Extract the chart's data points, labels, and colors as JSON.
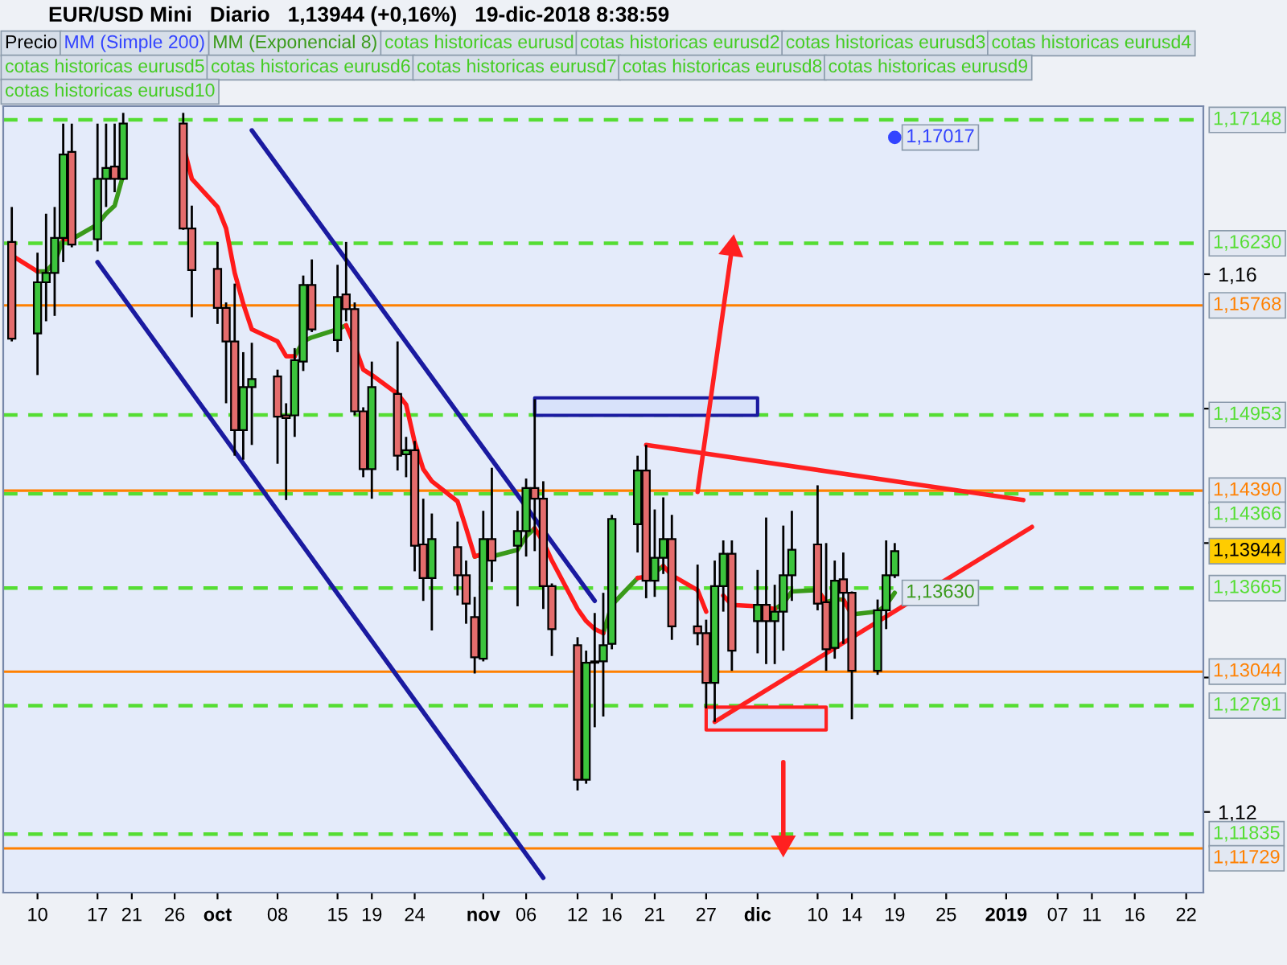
{
  "chart_data": {
    "type": "candlestick",
    "title": "EUR/USD Mini   Diario   1,13944 (+0,16%)   19-dic-2018 8:38:59",
    "xlim": [
      "2018-09-06",
      "2019-01-24"
    ],
    "xticks": [
      {
        "value": "2018-09-10",
        "label": "10"
      },
      {
        "value": "2018-09-17",
        "label": "17"
      },
      {
        "value": "2018-09-21",
        "label": "21"
      },
      {
        "value": "2018-09-26",
        "label": "26"
      },
      {
        "value": "2018-10-01",
        "label": "oct"
      },
      {
        "value": "2018-10-08",
        "label": "08"
      },
      {
        "value": "2018-10-15",
        "label": "15"
      },
      {
        "value": "2018-10-19",
        "label": "19"
      },
      {
        "value": "2018-10-24",
        "label": "24"
      },
      {
        "value": "2018-11-01",
        "label": "nov"
      },
      {
        "value": "2018-11-06",
        "label": "06"
      },
      {
        "value": "2018-11-12",
        "label": "12"
      },
      {
        "value": "2018-11-16",
        "label": "16"
      },
      {
        "value": "2018-11-21",
        "label": "21"
      },
      {
        "value": "2018-11-27",
        "label": "27"
      },
      {
        "value": "2018-12-03",
        "label": "dic"
      },
      {
        "value": "2018-12-10",
        "label": "10"
      },
      {
        "value": "2018-12-14",
        "label": "14"
      },
      {
        "value": "2018-12-19",
        "label": "19"
      },
      {
        "value": "2018-12-25",
        "label": "25"
      },
      {
        "value": "2019-01-01",
        "label": "2019"
      },
      {
        "value": "2019-01-07",
        "label": "07"
      },
      {
        "value": "2019-01-11",
        "label": "11"
      },
      {
        "value": "2019-01-16",
        "label": "16"
      },
      {
        "value": "2019-01-22",
        "label": "22"
      }
    ],
    "ylim": [
      1.114,
      1.1725
    ],
    "yticks": [
      {
        "value": 1.12,
        "label": "1,12"
      },
      {
        "value": 1.13,
        "label": null
      },
      {
        "value": 1.14,
        "label": null
      },
      {
        "value": 1.15,
        "label": null
      },
      {
        "value": 1.16,
        "label": "1,16"
      }
    ],
    "legend": "top left",
    "annotations": [
      "cotas historicas eurusd",
      "cotas historicas eurusd2",
      "cotas historicas eurusd3",
      "cotas historicas eurusd4",
      "cotas historicas eurusd5",
      "cotas historicas eurusd6",
      "cotas historicas eurusd7",
      "cotas historicas eurusd8",
      "cotas historicas eurusd9",
      "cotas historicas eurusd10"
    ],
    "ref_lines": [
      {
        "axis": "y",
        "value": 1.17148,
        "label": "1,17148",
        "color": "#55dd33",
        "line_style": "dashed"
      },
      {
        "axis": "y",
        "value": 1.1623,
        "label": "1,16230",
        "color": "#55dd33",
        "line_style": "dashed"
      },
      {
        "axis": "y",
        "value": 1.14953,
        "label": "1,14953",
        "color": "#55dd33",
        "line_style": "dashed"
      },
      {
        "axis": "y",
        "value": 1.14366,
        "label": "1,14366",
        "color": "#55dd33",
        "line_style": "dashed"
      },
      {
        "axis": "y",
        "value": 1.13665,
        "label": "1,13665",
        "color": "#55dd33",
        "line_style": "dashed"
      },
      {
        "axis": "y",
        "value": 1.12791,
        "label": "1,12791",
        "color": "#55dd33",
        "line_style": "dashed"
      },
      {
        "axis": "y",
        "value": 1.11835,
        "label": "1,11835",
        "color": "#55dd33",
        "line_style": "dashed"
      },
      {
        "axis": "y",
        "value": 1.15768,
        "label": "1,15768",
        "color": "#ff8000",
        "line_style": "solid"
      },
      {
        "axis": "y",
        "value": 1.1439,
        "label": "1,14390",
        "color": "#ff8000",
        "line_style": "solid"
      },
      {
        "axis": "y",
        "value": 1.13044,
        "label": "1,13044",
        "color": "#ff8000",
        "line_style": "solid"
      },
      {
        "axis": "y",
        "value": 1.11729,
        "label": "1,11729",
        "color": "#ff8000",
        "line_style": "solid"
      }
    ],
    "series": [
      {
        "name": "Precio",
        "x": [
          "2018-09-07",
          "2018-09-10",
          "2018-09-11",
          "2018-09-12",
          "2018-09-13",
          "2018-09-14",
          "2018-09-17",
          "2018-09-18",
          "2018-09-19",
          "2018-09-20",
          "2018-09-27",
          "2018-09-28",
          "2018-10-01",
          "2018-10-02",
          "2018-10-03",
          "2018-10-04",
          "2018-10-05",
          "2018-10-08",
          "2018-10-09",
          "2018-10-10",
          "2018-10-11",
          "2018-10-12",
          "2018-10-15",
          "2018-10-16",
          "2018-10-17",
          "2018-10-18",
          "2018-10-19",
          "2018-10-22",
          "2018-10-23",
          "2018-10-24",
          "2018-10-25",
          "2018-10-26",
          "2018-10-29",
          "2018-10-30",
          "2018-10-31",
          "2018-11-01",
          "2018-11-02",
          "2018-11-05",
          "2018-11-06",
          "2018-11-07",
          "2018-11-08",
          "2018-11-09",
          "2018-11-12",
          "2018-11-13",
          "2018-11-14",
          "2018-11-15",
          "2018-11-16",
          "2018-11-19",
          "2018-11-20",
          "2018-11-21",
          "2018-11-22",
          "2018-11-23",
          "2018-11-26",
          "2018-11-27",
          "2018-11-28",
          "2018-11-29",
          "2018-11-30",
          "2018-12-03",
          "2018-12-04",
          "2018-12-05",
          "2018-12-06",
          "2018-12-07",
          "2018-12-10",
          "2018-12-11",
          "2018-12-12",
          "2018-12-13",
          "2018-12-14",
          "2018-12-17",
          "2018-12-18",
          "2018-12-19"
        ],
        "ohlc": [
          [
            1.1624,
            1.165,
            1.155,
            1.1552
          ],
          [
            1.1556,
            1.1616,
            1.1525,
            1.1594
          ],
          [
            1.1594,
            1.1645,
            1.1565,
            1.1601
          ],
          [
            1.1601,
            1.165,
            1.1569,
            1.1627
          ],
          [
            1.1627,
            1.1712,
            1.1609,
            1.1689
          ],
          [
            1.1691,
            1.1712,
            1.162,
            1.1622
          ],
          [
            1.1626,
            1.1712,
            1.1617,
            1.1671
          ],
          [
            1.1671,
            1.1712,
            1.165,
            1.1679
          ],
          [
            1.168,
            1.1712,
            1.1661,
            1.1671
          ],
          [
            1.1671,
            1.172,
            1.167,
            1.1712
          ],
          [
            1.1712,
            1.172,
            1.1633,
            1.1634
          ],
          [
            1.1634,
            1.1651,
            1.1568,
            1.1603
          ],
          [
            1.1604,
            1.1624,
            1.1563,
            1.1575
          ],
          [
            1.1575,
            1.1579,
            1.1504,
            1.155
          ],
          [
            1.155,
            1.1593,
            1.1465,
            1.1484
          ],
          [
            1.1484,
            1.1542,
            1.1462,
            1.1516
          ],
          [
            1.1516,
            1.1549,
            1.1473,
            1.1522
          ],
          [
            1.1524,
            1.1529,
            1.1459,
            1.1494
          ],
          [
            1.1495,
            1.1504,
            1.1432,
            1.1493
          ],
          [
            1.1495,
            1.1545,
            1.1479,
            1.1536
          ],
          [
            1.1535,
            1.1599,
            1.1528,
            1.1592
          ],
          [
            1.1592,
            1.1611,
            1.1557,
            1.1559
          ],
          [
            1.1551,
            1.1607,
            1.1542,
            1.1583
          ],
          [
            1.1585,
            1.1624,
            1.1565,
            1.1574
          ],
          [
            1.1574,
            1.1579,
            1.1495,
            1.1498
          ],
          [
            1.1498,
            1.1501,
            1.1449,
            1.1455
          ],
          [
            1.1455,
            1.1535,
            1.1433,
            1.1516
          ],
          [
            1.1511,
            1.155,
            1.1454,
            1.1465
          ],
          [
            1.1466,
            1.1479,
            1.1449,
            1.1469
          ],
          [
            1.1469,
            1.1476,
            1.1379,
            1.1398
          ],
          [
            1.1399,
            1.1433,
            1.1357,
            1.1374
          ],
          [
            1.1374,
            1.1422,
            1.1335,
            1.1403
          ],
          [
            1.1397,
            1.1416,
            1.1361,
            1.1376
          ],
          [
            1.1376,
            1.1387,
            1.134,
            1.1355
          ],
          [
            1.1345,
            1.136,
            1.1303,
            1.1315
          ],
          [
            1.1314,
            1.1424,
            1.1312,
            1.1403
          ],
          [
            1.1403,
            1.1456,
            1.1371,
            1.1387
          ],
          [
            1.1398,
            1.1424,
            1.1353,
            1.1409
          ],
          [
            1.1409,
            1.1448,
            1.139,
            1.1441
          ],
          [
            1.1441,
            1.1507,
            1.1394,
            1.1433
          ],
          [
            1.1433,
            1.1446,
            1.1351,
            1.1368
          ],
          [
            1.1368,
            1.137,
            1.1316,
            1.1336
          ],
          [
            1.1324,
            1.133,
            1.1216,
            1.1224
          ],
          [
            1.1224,
            1.132,
            1.1221,
            1.1311
          ],
          [
            1.1312,
            1.1348,
            1.1263,
            1.1311
          ],
          [
            1.1312,
            1.1363,
            1.1271,
            1.1324
          ],
          [
            1.1325,
            1.1421,
            1.1321,
            1.1418
          ],
          [
            1.1414,
            1.1465,
            1.1393,
            1.1454
          ],
          [
            1.1454,
            1.1473,
            1.1359,
            1.1372
          ],
          [
            1.1372,
            1.1425,
            1.136,
            1.1389
          ],
          [
            1.1389,
            1.1434,
            1.1377,
            1.1403
          ],
          [
            1.1403,
            1.1421,
            1.1328,
            1.1338
          ],
          [
            1.1338,
            1.1384,
            1.1324,
            1.1333
          ],
          [
            1.1333,
            1.1343,
            1.1277,
            1.1296
          ],
          [
            1.1296,
            1.1387,
            1.1267,
            1.1368
          ],
          [
            1.1368,
            1.1402,
            1.1349,
            1.1392
          ],
          [
            1.1392,
            1.1402,
            1.1305,
            1.132
          ],
          [
            1.1342,
            1.138,
            1.1318,
            1.1354
          ],
          [
            1.1354,
            1.1419,
            1.131,
            1.1342
          ],
          [
            1.1342,
            1.1369,
            1.131,
            1.1349
          ],
          [
            1.1349,
            1.1413,
            1.132,
            1.1376
          ],
          [
            1.1376,
            1.1424,
            1.1357,
            1.1395
          ],
          [
            1.1399,
            1.1443,
            1.135,
            1.1355
          ],
          [
            1.1356,
            1.14,
            1.1305,
            1.1321
          ],
          [
            1.1322,
            1.1387,
            1.1314,
            1.1372
          ],
          [
            1.1373,
            1.1393,
            1.1325,
            1.1363
          ],
          [
            1.1363,
            1.1364,
            1.1269,
            1.1305
          ],
          [
            1.1305,
            1.1358,
            1.1302,
            1.135
          ],
          [
            1.135,
            1.1402,
            1.1336,
            1.1376
          ],
          [
            1.1376,
            1.14,
            1.1374,
            1.1394
          ]
        ],
        "colors": [
          "#e46c6c",
          "#3cc43c",
          "#3cc43c",
          "#3cc43c",
          "#3cc43c",
          "#e46c6c",
          "#3cc43c",
          "#3cc43c",
          "#e46c6c",
          "#3cc43c",
          "#e46c6c",
          "#e46c6c",
          "#e46c6c",
          "#e46c6c",
          "#e46c6c",
          "#3cc43c",
          "#3cc43c",
          "#e46c6c",
          "#e46c6c",
          "#3cc43c",
          "#3cc43c",
          "#e46c6c",
          "#3cc43c",
          "#e46c6c",
          "#e46c6c",
          "#e46c6c",
          "#3cc43c",
          "#e46c6c",
          "#3cc43c",
          "#e46c6c",
          "#e46c6c",
          "#3cc43c",
          "#e46c6c",
          "#e46c6c",
          "#e46c6c",
          "#3cc43c",
          "#e46c6c",
          "#3cc43c",
          "#3cc43c",
          "#e46c6c",
          "#e46c6c",
          "#e46c6c",
          "#e46c6c",
          "#3cc43c",
          "#e46c6c",
          "#3cc43c",
          "#3cc43c",
          "#3cc43c",
          "#e46c6c",
          "#3cc43c",
          "#3cc43c",
          "#e46c6c",
          "#e46c6c",
          "#e46c6c",
          "#3cc43c",
          "#3cc43c",
          "#e46c6c",
          "#3cc43c",
          "#e46c6c",
          "#3cc43c",
          "#3cc43c",
          "#3cc43c",
          "#e46c6c",
          "#e46c6c",
          "#3cc43c",
          "#e46c6c",
          "#e46c6c",
          "#3cc43c",
          "#3cc43c",
          "#3cc43c"
        ],
        "value_labels": [
          null,
          null,
          null,
          null,
          null,
          null,
          null,
          null,
          null,
          null,
          null,
          null,
          null,
          null,
          null,
          null,
          null,
          null,
          null,
          null,
          null,
          null,
          null,
          null,
          null,
          null,
          null,
          null,
          null,
          null,
          null,
          null,
          null,
          null,
          null,
          null,
          null,
          null,
          null,
          null,
          null,
          null,
          null,
          null,
          null,
          null,
          null,
          null,
          null,
          null,
          null,
          null,
          null,
          null,
          null,
          null,
          null,
          null,
          null,
          null,
          null,
          null,
          null,
          null,
          null,
          null,
          null,
          null,
          null,
          "1,13944"
        ]
      },
      {
        "type": "line",
        "name": "MM (Simple 200)",
        "color": "#3344ff",
        "marker": "circle",
        "x": [
          "2018-12-19"
        ],
        "values": [
          1.17017
        ],
        "value_labels": [
          "1,17017"
        ]
      },
      {
        "type": "line",
        "name": "MM (Exponencial 8)",
        "color": "#3a9a1a",
        "x": [
          "2018-09-10",
          "2018-09-11",
          "2018-09-12",
          "2018-09-13",
          "2018-09-14",
          "2018-09-17",
          "2018-09-18",
          "2018-09-19",
          "2018-09-20",
          "2018-09-24",
          "2018-09-27",
          "2018-09-28",
          "2018-10-01",
          "2018-10-02",
          "2018-10-03",
          "2018-10-04",
          "2018-10-05",
          "2018-10-08",
          "2018-10-09",
          "2018-10-10",
          "2018-10-11",
          "2018-10-12",
          "2018-10-15",
          "2018-10-16",
          "2018-10-17",
          "2018-10-18",
          "2018-10-19",
          "2018-10-22",
          "2018-10-23",
          "2018-10-24",
          "2018-10-25",
          "2018-10-26",
          "2018-10-29",
          "2018-10-30",
          "2018-10-31",
          "2018-11-01",
          "2018-11-02",
          "2018-11-05",
          "2018-11-06",
          "2018-11-07",
          "2018-11-08",
          "2018-11-09",
          "2018-11-12",
          "2018-11-13",
          "2018-11-14",
          "2018-11-15",
          "2018-11-16",
          "2018-11-19",
          "2018-11-20",
          "2018-11-21",
          "2018-11-22",
          "2018-11-23",
          "2018-11-26",
          "2018-11-27",
          "2018-11-28",
          "2018-11-29",
          "2018-11-30",
          "2018-12-03",
          "2018-12-04",
          "2018-12-05",
          "2018-12-06",
          "2018-12-07",
          "2018-12-10",
          "2018-12-11",
          "2018-12-12",
          "2018-12-13",
          "2018-12-14",
          "2018-12-17",
          "2018-12-18",
          "2018-12-19"
        ],
        "values": [
          1.1602,
          1.1602,
          1.1609,
          1.1626,
          1.1626,
          1.1637,
          1.1645,
          1.1651,
          1.1674,
          null,
          null,
          null,
          null,
          null,
          null,
          null,
          null,
          null,
          null,
          1.1539,
          1.155,
          1.1553,
          1.1559,
          1.1562,
          null,
          null,
          null,
          null,
          null,
          null,
          null,
          null,
          null,
          null,
          1.139,
          1.1392,
          1.139,
          1.1395,
          1.1405,
          1.1411,
          null,
          null,
          null,
          null,
          null,
          1.1333,
          1.1354,
          1.1374,
          null,
          1.1378,
          1.1383,
          null,
          null,
          null,
          null,
          null,
          null,
          null,
          null,
          1.1351,
          1.1355,
          1.1364,
          1.1365,
          1.1356,
          1.1358,
          1.1358,
          1.1347,
          1.1349,
          1.1354,
          1.1363
        ],
        "value_labels": [
          null,
          null,
          null,
          null,
          null,
          null,
          null,
          null,
          null,
          null,
          null,
          null,
          null,
          null,
          null,
          null,
          null,
          null,
          null,
          null,
          null,
          null,
          null,
          null,
          null,
          null,
          null,
          null,
          null,
          null,
          null,
          null,
          null,
          null,
          null,
          null,
          null,
          null,
          null,
          null,
          null,
          null,
          null,
          null,
          null,
          null,
          null,
          null,
          null,
          null,
          null,
          null,
          null,
          null,
          null,
          null,
          null,
          null,
          null,
          null,
          null,
          null,
          null,
          null,
          null,
          null,
          null,
          null,
          null,
          "1,13630"
        ]
      },
      {
        "type": "line",
        "color": "#ff1a1a",
        "x": [
          "2018-09-07",
          "2018-09-10",
          "2018-09-11",
          "2018-09-12",
          "2018-09-13",
          "2018-09-14",
          "2018-09-17",
          "2018-09-18",
          "2018-09-19",
          "2018-09-20",
          "2018-09-24",
          "2018-09-27",
          "2018-09-28",
          "2018-10-01",
          "2018-10-02",
          "2018-10-03",
          "2018-10-04",
          "2018-10-05",
          "2018-10-08",
          "2018-10-09",
          "2018-10-10",
          "2018-10-11",
          "2018-10-12",
          "2018-10-15",
          "2018-10-16",
          "2018-10-17",
          "2018-10-18",
          "2018-10-19",
          "2018-10-22",
          "2018-10-23",
          "2018-10-24",
          "2018-10-25",
          "2018-10-26",
          "2018-10-29",
          "2018-10-30",
          "2018-10-31",
          "2018-11-01",
          "2018-11-02",
          "2018-11-05",
          "2018-11-06",
          "2018-11-07",
          "2018-11-08",
          "2018-11-09",
          "2018-11-12",
          "2018-11-13",
          "2018-11-14",
          "2018-11-15",
          "2018-11-16",
          "2018-11-19",
          "2018-11-20",
          "2018-11-21",
          "2018-11-22",
          "2018-11-23",
          "2018-11-26",
          "2018-11-27",
          "2018-11-28",
          "2018-11-29",
          "2018-11-30",
          "2018-12-03",
          "2018-12-04",
          "2018-12-05",
          "2018-12-06",
          "2018-12-07",
          "2018-12-10",
          "2018-12-11",
          "2018-12-12",
          "2018-12-13",
          "2018-12-14"
        ],
        "values": [
          1.1614,
          1.1602,
          null,
          null,
          1.1626,
          1.1626,
          null,
          null,
          null,
          null,
          null,
          1.1696,
          1.1671,
          1.165,
          1.1634,
          1.1601,
          1.1578,
          1.1559,
          1.155,
          1.1539,
          1.1539,
          null,
          null,
          null,
          1.1562,
          1.1547,
          1.1529,
          1.1525,
          1.1511,
          1.1503,
          1.1475,
          1.1455,
          1.1446,
          1.1431,
          1.1411,
          1.139,
          1.1392,
          1.139,
          null,
          null,
          1.1411,
          1.1401,
          1.1387,
          1.1351,
          1.1342,
          1.1336,
          1.1333,
          null,
          1.1374,
          1.1375,
          null,
          1.1383,
          1.1376,
          1.1365,
          1.1349,
          null,
          1.1361,
          1.1354,
          1.1353,
          1.1352,
          1.1351,
          null,
          null,
          1.1365,
          1.1356,
          null,
          1.1358,
          1.1347
        ]
      },
      {
        "type": "line",
        "color": "#1a1aa0",
        "x": [
          "2018-09-17",
          "2018-11-08"
        ],
        "values": [
          1.1609,
          1.1151
        ]
      },
      {
        "type": "line",
        "color": "#1a1aa0",
        "x": [
          "2018-10-05",
          "2018-11-14"
        ],
        "values": [
          1.1707,
          1.1357
        ]
      },
      {
        "type": "line",
        "color": "#ff2020",
        "x": [
          "2018-11-20",
          "2019-01-03"
        ],
        "values": [
          1.1473,
          1.1432
        ]
      },
      {
        "type": "line",
        "color": "#ff2020",
        "x": [
          "2018-11-28",
          "2019-01-04"
        ],
        "values": [
          1.1267,
          1.1412
        ]
      },
      {
        "type": "line",
        "color": "#ff2020",
        "marker": "triangle",
        "x": [
          "2018-11-26",
          "2018-11-30"
        ],
        "values": [
          1.1438,
          1.1619
        ]
      },
      {
        "type": "line",
        "color": "#ff2020",
        "marker": "triangle",
        "x": [
          "2018-12-06",
          "2018-12-06"
        ],
        "values": [
          1.1237,
          1.1177
        ]
      },
      {
        "type": "line",
        "color": "#1a1aa0",
        "x": [
          "2018-11-07",
          "2018-12-03"
        ],
        "values": [
          null,
          null
        ],
        "lower": [
          1.1495,
          1.1495
        ],
        "upper": [
          1.1508,
          1.1508
        ]
      },
      {
        "type": "line",
        "color": "#ff2020",
        "x": [
          "2018-11-27",
          "2018-12-11"
        ],
        "values": [
          null,
          null
        ],
        "lower": [
          1.1261,
          1.1261
        ],
        "upper": [
          1.1278,
          1.1278
        ]
      }
    ]
  }
}
